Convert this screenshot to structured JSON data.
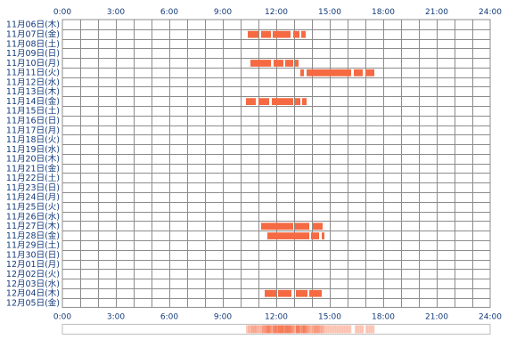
{
  "chart_data": {
    "type": "activity-timeline",
    "x_ticks": [
      "0:00",
      "3:00",
      "6:00",
      "9:00",
      "12:00",
      "15:00",
      "18:00",
      "21:00",
      "24:00"
    ],
    "xlim_hours": [
      0,
      24
    ],
    "grid": true,
    "days": [
      {
        "label": "11月06日(木)",
        "sessions": []
      },
      {
        "label": "11月07日(金)",
        "sessions": [
          [
            10.4,
            11.0
          ],
          [
            11.15,
            11.7
          ],
          [
            11.8,
            12.8
          ],
          [
            12.95,
            13.3
          ],
          [
            13.4,
            13.65
          ]
        ]
      },
      {
        "label": "11月08日(土)",
        "sessions": []
      },
      {
        "label": "11月09日(日)",
        "sessions": []
      },
      {
        "label": "11月10日(月)",
        "sessions": [
          [
            10.55,
            11.7
          ],
          [
            11.85,
            12.4
          ],
          [
            12.5,
            12.95
          ],
          [
            13.05,
            13.25
          ]
        ]
      },
      {
        "label": "11月11日(火)",
        "sessions": [
          [
            13.35,
            13.55
          ],
          [
            13.7,
            16.2
          ],
          [
            16.35,
            16.85
          ],
          [
            17.0,
            17.5
          ]
        ]
      },
      {
        "label": "11月12日(水)",
        "sessions": []
      },
      {
        "label": "11月13日(木)",
        "sessions": []
      },
      {
        "label": "11月14日(金)",
        "sessions": [
          [
            10.3,
            10.85
          ],
          [
            11.0,
            11.6
          ],
          [
            11.75,
            12.95
          ],
          [
            13.05,
            13.35
          ],
          [
            13.45,
            13.7
          ]
        ]
      },
      {
        "label": "11月15日(土)",
        "sessions": []
      },
      {
        "label": "11月16日(日)",
        "sessions": []
      },
      {
        "label": "11月17日(月)",
        "sessions": []
      },
      {
        "label": "11月18日(火)",
        "sessions": []
      },
      {
        "label": "11月19日(水)",
        "sessions": []
      },
      {
        "label": "11月20日(木)",
        "sessions": []
      },
      {
        "label": "11月21日(金)",
        "sessions": []
      },
      {
        "label": "11月22日(土)",
        "sessions": []
      },
      {
        "label": "11月23日(日)",
        "sessions": []
      },
      {
        "label": "11月24日(月)",
        "sessions": []
      },
      {
        "label": "11月25日(火)",
        "sessions": []
      },
      {
        "label": "11月26日(水)",
        "sessions": []
      },
      {
        "label": "11月27日(木)",
        "sessions": [
          [
            11.15,
            12.95
          ],
          [
            13.05,
            13.85
          ],
          [
            14.05,
            14.6
          ]
        ]
      },
      {
        "label": "11月28日(金)",
        "sessions": [
          [
            11.5,
            13.85
          ],
          [
            13.95,
            14.4
          ],
          [
            14.55,
            14.7
          ]
        ]
      },
      {
        "label": "11月29日(土)",
        "sessions": []
      },
      {
        "label": "11月30日(日)",
        "sessions": []
      },
      {
        "label": "12月01日(月)",
        "sessions": []
      },
      {
        "label": "12月02日(火)",
        "sessions": []
      },
      {
        "label": "12月03日(水)",
        "sessions": []
      },
      {
        "label": "12月04日(木)",
        "sessions": [
          [
            11.35,
            12.0
          ],
          [
            12.1,
            12.85
          ],
          [
            13.1,
            13.75
          ],
          [
            13.85,
            14.55
          ]
        ]
      },
      {
        "label": "12月05日(金)",
        "sessions": []
      }
    ],
    "density_summary": true
  },
  "colors": {
    "bar": "#f56a42",
    "grid": "#8c8c8c",
    "grid_bg": "#ffffff",
    "label": "#123a7a",
    "density_base": "#fbe8de"
  }
}
